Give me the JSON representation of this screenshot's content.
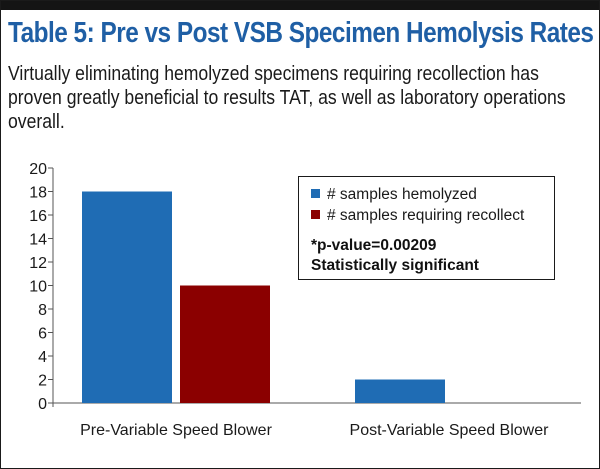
{
  "title": "Table 5: Pre vs Post VSB Specimen Hemolysis Rates",
  "subtitle": "Virtually eliminating hemolyzed specimens requiring recollection has proven greatly beneficial to results TAT, as well as laboratory operations overall.",
  "chart_data": {
    "type": "bar",
    "categories": [
      "Pre-Variable Speed Blower",
      "Post-Variable Speed Blower"
    ],
    "series": [
      {
        "name": "# samples hemolyzed",
        "values": [
          18,
          2
        ],
        "color": "#1f6cb4"
      },
      {
        "name": "# samples requiring recollect",
        "values": [
          10,
          0
        ],
        "color": "#8b0000"
      }
    ],
    "ylim": [
      0,
      20
    ],
    "yticks": [
      "0",
      "2",
      "4",
      "6",
      "8",
      "10",
      "12",
      "14",
      "16",
      "18",
      "20"
    ],
    "grid": false,
    "legend": "top-right",
    "annotation": {
      "line1": "*p-value=0.00209",
      "line2": "Statistically significant"
    }
  }
}
